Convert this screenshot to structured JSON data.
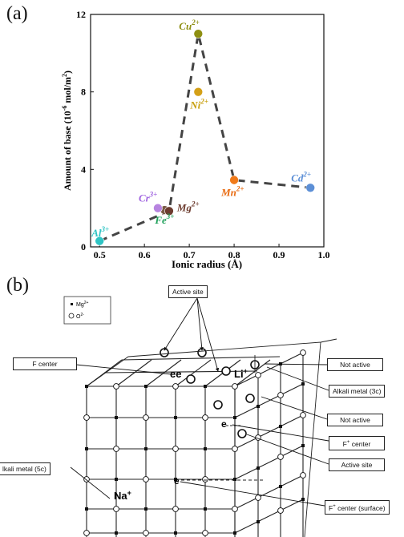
{
  "panel_a": {
    "label": "(a)",
    "chart_data": {
      "type": "scatter",
      "xlabel": "Ionic radius (Å)",
      "ylabel": "Amount of base (10",
      "ylabel_sup": "-6",
      "ylabel_tail": " mol/m",
      "ylabel_sup2": "2",
      "ylabel_end": ")",
      "xlim": [
        0.48,
        1.0
      ],
      "ylim": [
        0,
        12
      ],
      "xticks": [
        "0.5",
        "0.6",
        "0.7",
        "0.8",
        "0.9",
        "1.0"
      ],
      "yticks": [
        "0",
        "4",
        "8",
        "12"
      ],
      "points": [
        {
          "ion": "Al",
          "charge": "3+",
          "x": 0.5,
          "y": 0.3,
          "color": "#2ec4c4"
        },
        {
          "ion": "Fe",
          "charge": "3+",
          "x": 0.645,
          "y": 1.9,
          "color": "#7a5a46"
        },
        {
          "ion": "Cr",
          "charge": "3+",
          "x": 0.63,
          "y": 2.0,
          "color": "#b784e0"
        },
        {
          "ion": "Mg",
          "charge": "2+",
          "x": 0.655,
          "y": 1.85,
          "color": "#6d3c2f"
        },
        {
          "ion": "Cu",
          "charge": "2+",
          "x": 0.72,
          "y": 11.0,
          "color": "#8e8f12"
        },
        {
          "ion": "Ni",
          "charge": "2+",
          "x": 0.72,
          "y": 8.0,
          "color": "#d4a017"
        },
        {
          "ion": "Mn",
          "charge": "2+",
          "x": 0.8,
          "y": 3.45,
          "color": "#f07a1a"
        },
        {
          "ion": "Cd",
          "charge": "2+",
          "x": 0.97,
          "y": 3.05,
          "color": "#5c8fd6"
        }
      ],
      "trend_line": [
        [
          0.5,
          0.3
        ],
        [
          0.655,
          1.85
        ],
        [
          0.72,
          11.0
        ],
        [
          0.8,
          3.45
        ],
        [
          0.97,
          3.05
        ]
      ],
      "labels": [
        {
          "ion": "Al",
          "charge": "3+",
          "color": "#2ec4c4"
        },
        {
          "ion": "Fe",
          "charge": "3+",
          "color": "#1fa05a"
        },
        {
          "ion": "Cr",
          "charge": "3+",
          "color": "#a064e0"
        },
        {
          "ion": "Mg",
          "charge": "2+",
          "color": "#6d3c2f"
        },
        {
          "ion": "Cu",
          "charge": "2+",
          "color": "#8e8f12"
        },
        {
          "ion": "Ni",
          "charge": "2+",
          "color": "#c8a010"
        },
        {
          "ion": "Mn",
          "charge": "2+",
          "color": "#e86a10"
        },
        {
          "ion": "Cd",
          "charge": "2+",
          "color": "#5c8fd6"
        }
      ]
    }
  },
  "panel_b": {
    "label": "(b)",
    "legend": {
      "mg": "Mg",
      "mg_sup": "2+",
      "o": "O",
      "o_sup": "2-"
    },
    "lattice_labels": {
      "na": "Na",
      "li": "Li",
      "ee": "ee",
      "e": "e"
    },
    "callouts": {
      "active_site_top": "Active site",
      "f_center": "F center",
      "not_active_1": "Not active",
      "alkali_3c": "Alkali metal (3c)",
      "not_active_2": "Not active",
      "f_plus_center": "F",
      "f_plus_center_tail": " center",
      "active_site_bottom": "Active site",
      "alkali_5c": "lkali metal (5c)",
      "f_plus_surface": "F",
      "f_plus_surface_tail": " center (surface)"
    }
  }
}
